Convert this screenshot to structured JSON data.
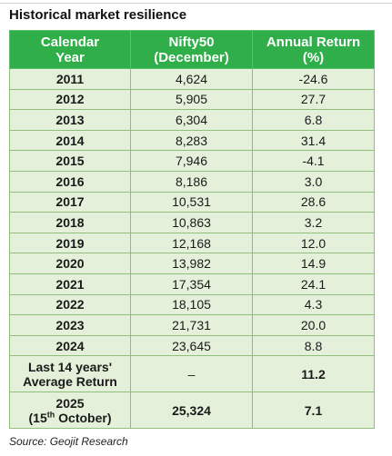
{
  "header": {
    "title": "Historical market resilience"
  },
  "table": {
    "columns": [
      [
        "Calendar",
        "Year"
      ],
      [
        "Nifty50",
        "(December)"
      ],
      [
        "Annual Return",
        "(%)"
      ]
    ],
    "rows": [
      [
        "2011",
        "4,624",
        "-24.6"
      ],
      [
        "2012",
        "5,905",
        "27.7"
      ],
      [
        "2013",
        "6,304",
        "6.8"
      ],
      [
        "2014",
        "8,283",
        "31.4"
      ],
      [
        "2015",
        "7,946",
        "-4.1"
      ],
      [
        "2016",
        "8,186",
        "3.0"
      ],
      [
        "2017",
        "10,531",
        "28.6"
      ],
      [
        "2018",
        "10,863",
        "3.2"
      ],
      [
        "2019",
        "12,168",
        "12.0"
      ],
      [
        "2020",
        "13,982",
        "14.9"
      ],
      [
        "2021",
        "17,354",
        "24.1"
      ],
      [
        "2022",
        "18,105",
        "4.3"
      ],
      [
        "2023",
        "21,731",
        "20.0"
      ],
      [
        "2024",
        "23,645",
        "8.8"
      ]
    ],
    "summary_rows": [
      {
        "label": [
          "Last 14 years'",
          "Average Return"
        ],
        "nifty": "–",
        "return": "11.2"
      },
      {
        "label": [
          "2025",
          "(15",
          "th",
          " October)"
        ],
        "nifty": "25,324",
        "return": "7.1"
      }
    ]
  },
  "footer": {
    "source": "Source: Geojit Research"
  }
}
